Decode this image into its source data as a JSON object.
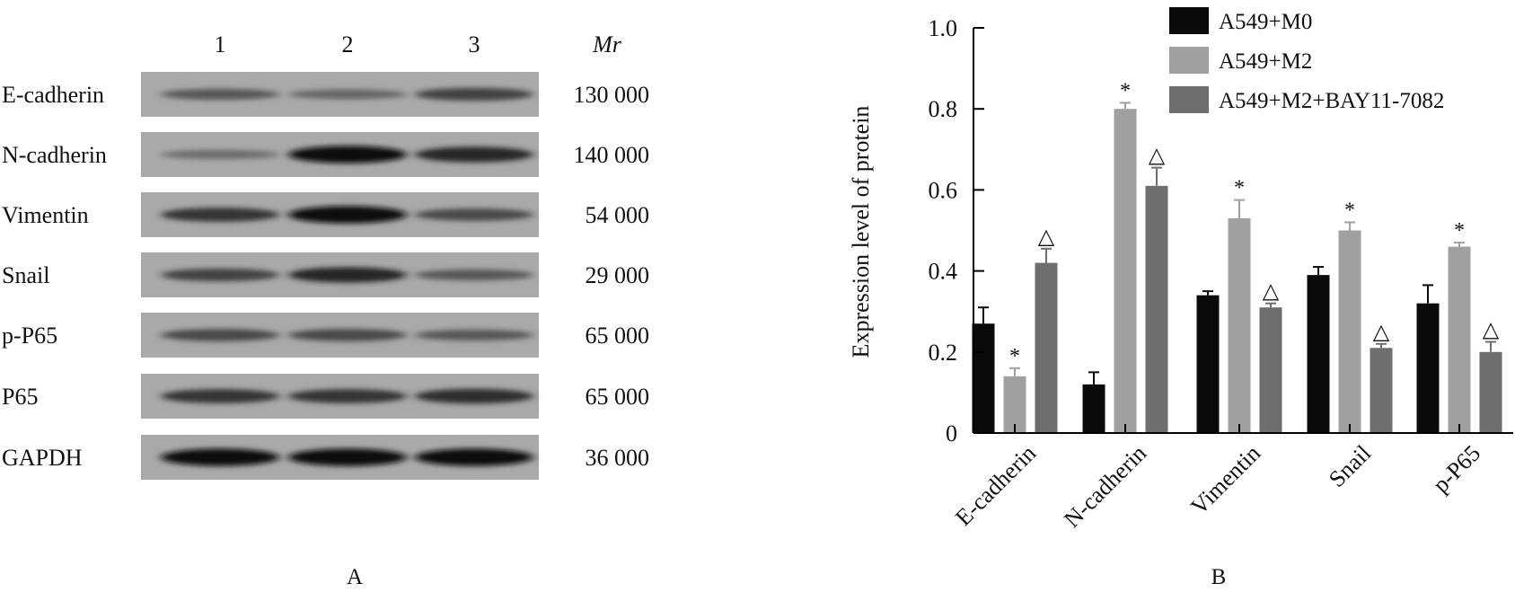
{
  "panel_a": {
    "lane_labels": [
      "1",
      "2",
      "3"
    ],
    "mr_header": "Mr",
    "rows": [
      {
        "protein": "E-cadherin",
        "mr": "130 000",
        "intensity": [
          0.45,
          0.35,
          0.6
        ]
      },
      {
        "protein": "N-cadherin",
        "mr": "140 000",
        "intensity": [
          0.3,
          0.95,
          0.8
        ]
      },
      {
        "protein": "Vimentin",
        "mr": "54 000",
        "intensity": [
          0.7,
          0.95,
          0.55
        ]
      },
      {
        "protein": "Snail",
        "mr": "29 000",
        "intensity": [
          0.6,
          0.8,
          0.45
        ]
      },
      {
        "protein": "p-P65",
        "mr": "65 000",
        "intensity": [
          0.55,
          0.55,
          0.45
        ]
      },
      {
        "protein": "P65",
        "mr": "65 000",
        "intensity": [
          0.7,
          0.7,
          0.75
        ]
      },
      {
        "protein": "GAPDH",
        "mr": "36 000",
        "intensity": [
          0.95,
          0.95,
          0.95
        ]
      }
    ],
    "label": "A"
  },
  "chart_data": {
    "type": "bar",
    "ylabel": "Expression level of protein",
    "ylim": [
      0,
      1.0
    ],
    "yticks": [
      0,
      0.2,
      0.4,
      0.6,
      0.8,
      1.0
    ],
    "ytick_labels": [
      "0",
      "0.2",
      "0.4",
      "0.6",
      "0.8",
      "1.0"
    ],
    "categories": [
      "E-cadherin",
      "N-cadherin",
      "Vimentin",
      "Snail",
      "p-P65"
    ],
    "series": [
      {
        "name": "A549+M0",
        "color": "#0a0a0a",
        "values": [
          0.27,
          0.12,
          0.34,
          0.39,
          0.32
        ],
        "errors": [
          0.04,
          0.03,
          0.01,
          0.02,
          0.045
        ],
        "markers": [
          "",
          "",
          "",
          "",
          ""
        ]
      },
      {
        "name": "A549+M2",
        "color": "#a0a0a0",
        "values": [
          0.14,
          0.8,
          0.53,
          0.5,
          0.46
        ],
        "errors": [
          0.02,
          0.015,
          0.045,
          0.02,
          0.01
        ],
        "markers": [
          "*",
          "*",
          "*",
          "*",
          "*"
        ]
      },
      {
        "name": "A549+M2+BAY11-7082",
        "color": "#6e6e6e",
        "values": [
          0.42,
          0.61,
          0.31,
          0.21,
          0.2
        ],
        "errors": [
          0.035,
          0.045,
          0.01,
          0.01,
          0.025
        ],
        "markers": [
          "△",
          "△",
          "△",
          "△",
          "△"
        ]
      }
    ],
    "legend_position": "top-right",
    "grid": false,
    "label": "B"
  }
}
